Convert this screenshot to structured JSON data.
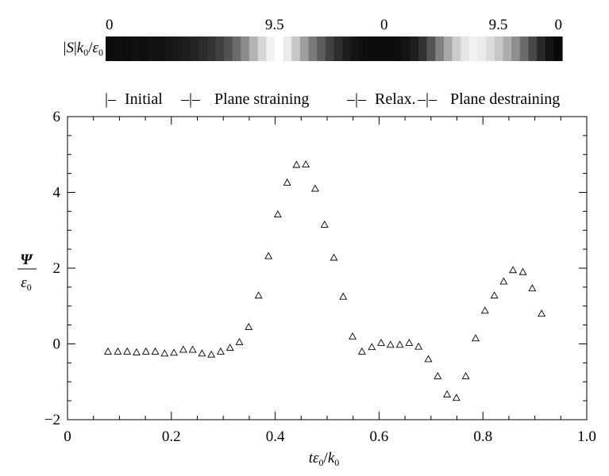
{
  "colorbar": {
    "label": "|S|k₀/ε₀",
    "labels": [
      "0",
      "9.5",
      "0",
      "9.5",
      "0"
    ],
    "label_values": [
      0,
      0.37,
      0.61,
      0.86,
      1.0
    ],
    "strip": [
      0.05,
      0.06,
      0.05,
      0.07,
      0.06,
      0.08,
      0.07,
      0.09,
      0.1,
      0.12,
      0.14,
      0.17,
      0.2,
      0.25,
      0.32,
      0.42,
      0.55,
      0.7,
      0.84,
      0.95,
      1.0,
      0.92,
      0.78,
      0.62,
      0.48,
      0.36,
      0.26,
      0.18,
      0.12,
      0.08,
      0.06,
      0.05,
      0.05,
      0.05,
      0.06,
      0.08,
      0.12,
      0.2,
      0.33,
      0.5,
      0.66,
      0.8,
      0.9,
      0.95,
      0.92,
      0.86,
      0.78,
      0.68,
      0.56,
      0.42,
      0.28,
      0.16,
      0.08,
      0.04
    ]
  },
  "phases": {
    "labels": [
      "Initial",
      "Plane straining",
      "Relax.",
      "Plane destraining"
    ]
  },
  "chart_data": {
    "type": "scatter",
    "marker": "open-triangle",
    "xlabel": "tε₀/k₀",
    "ylabel_num": "Ψ",
    "ylabel_den": "ε₀",
    "xlim": [
      0,
      1.0
    ],
    "ylim": [
      -2,
      6
    ],
    "xticks": [
      "0",
      "0.2",
      "0.4",
      "0.6",
      "0.8",
      "1.0"
    ],
    "yticks": [
      "−2",
      "0",
      "2",
      "4",
      "6"
    ],
    "x": [
      0.078,
      0.097,
      0.115,
      0.133,
      0.151,
      0.169,
      0.187,
      0.205,
      0.223,
      0.241,
      0.259,
      0.277,
      0.295,
      0.313,
      0.331,
      0.349,
      0.368,
      0.387,
      0.405,
      0.423,
      0.441,
      0.459,
      0.477,
      0.495,
      0.513,
      0.531,
      0.549,
      0.567,
      0.586,
      0.604,
      0.622,
      0.64,
      0.658,
      0.676,
      0.695,
      0.713,
      0.731,
      0.749,
      0.767,
      0.786,
      0.804,
      0.822,
      0.84,
      0.858,
      0.877,
      0.895,
      0.913
    ],
    "y": [
      -0.2,
      -0.2,
      -0.2,
      -0.22,
      -0.2,
      -0.2,
      -0.25,
      -0.23,
      -0.15,
      -0.15,
      -0.25,
      -0.28,
      -0.2,
      -0.1,
      0.05,
      0.45,
      1.28,
      2.32,
      3.42,
      4.26,
      4.73,
      4.74,
      4.1,
      3.15,
      2.28,
      1.25,
      0.2,
      -0.2,
      -0.08,
      0.03,
      -0.02,
      -0.02,
      0.03,
      -0.07,
      -0.4,
      -0.85,
      -1.33,
      -1.42,
      -0.85,
      0.15,
      0.88,
      1.28,
      1.65,
      1.95,
      1.9,
      1.47,
      0.8
    ]
  }
}
